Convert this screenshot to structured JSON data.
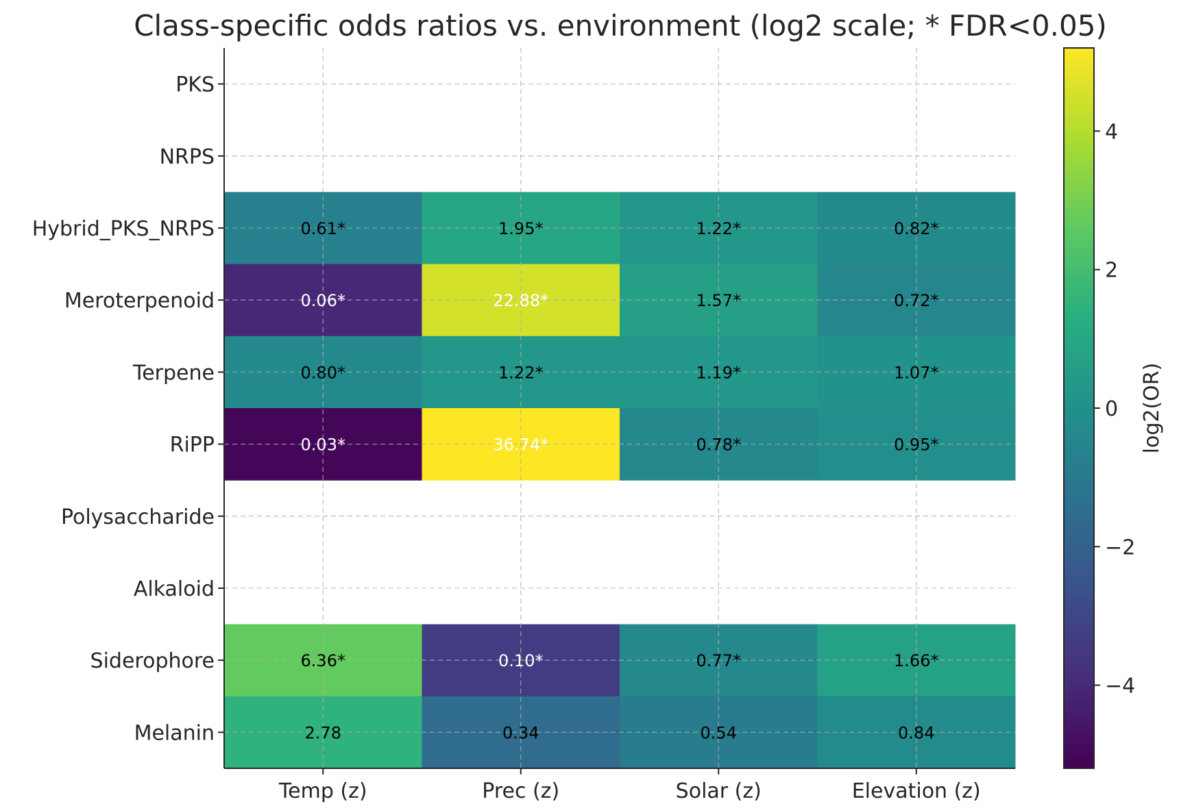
{
  "chart_data": {
    "type": "heatmap",
    "title": "Class-specific odds ratios vs. environment (log2 scale; * FDR<0.05)",
    "columns": [
      "Temp (z)",
      "Prec (z)",
      "Solar (z)",
      "Elevation (z)"
    ],
    "rows": [
      "PKS",
      "NRPS",
      "Hybrid_PKS_NRPS",
      "Meroterpenoid",
      "Terpene",
      "RiPP",
      "Polysaccharide",
      "Alkaloid",
      "Siderophore",
      "Melanin"
    ],
    "values_or": [
      [
        null,
        null,
        null,
        null
      ],
      [
        null,
        null,
        null,
        null
      ],
      [
        0.61,
        1.95,
        1.22,
        0.82
      ],
      [
        0.06,
        22.88,
        1.57,
        0.72
      ],
      [
        0.8,
        1.22,
        1.19,
        1.07
      ],
      [
        0.03,
        36.74,
        0.78,
        0.95
      ],
      [
        null,
        null,
        null,
        null
      ],
      [
        null,
        null,
        null,
        null
      ],
      [
        6.36,
        0.1,
        0.77,
        1.66
      ],
      [
        2.78,
        0.34,
        0.54,
        0.84
      ]
    ],
    "cell_labels": [
      [
        "",
        "",
        "",
        ""
      ],
      [
        "",
        "",
        "",
        ""
      ],
      [
        "0.61*",
        "1.95*",
        "1.22*",
        "0.82*"
      ],
      [
        "0.06*",
        "22.88*",
        "1.57*",
        "0.72*"
      ],
      [
        "0.80*",
        "1.22*",
        "1.19*",
        "1.07*"
      ],
      [
        "0.03*",
        "36.74*",
        "0.78*",
        "0.95*"
      ],
      [
        "",
        "",
        "",
        ""
      ],
      [
        "",
        "",
        "",
        ""
      ],
      [
        "6.36*",
        "0.10*",
        "0.77*",
        "1.66*"
      ],
      [
        "2.78",
        "0.34",
        "0.54",
        "0.84"
      ]
    ],
    "color_scale": {
      "colormap": "viridis",
      "label": "log2(OR)",
      "range": [
        -5.2,
        5.2
      ],
      "ticks": [
        4,
        2,
        0,
        -2,
        -4
      ],
      "tick_labels": [
        "4",
        "2",
        "0",
        "−2",
        "−4"
      ]
    },
    "grid": true
  }
}
